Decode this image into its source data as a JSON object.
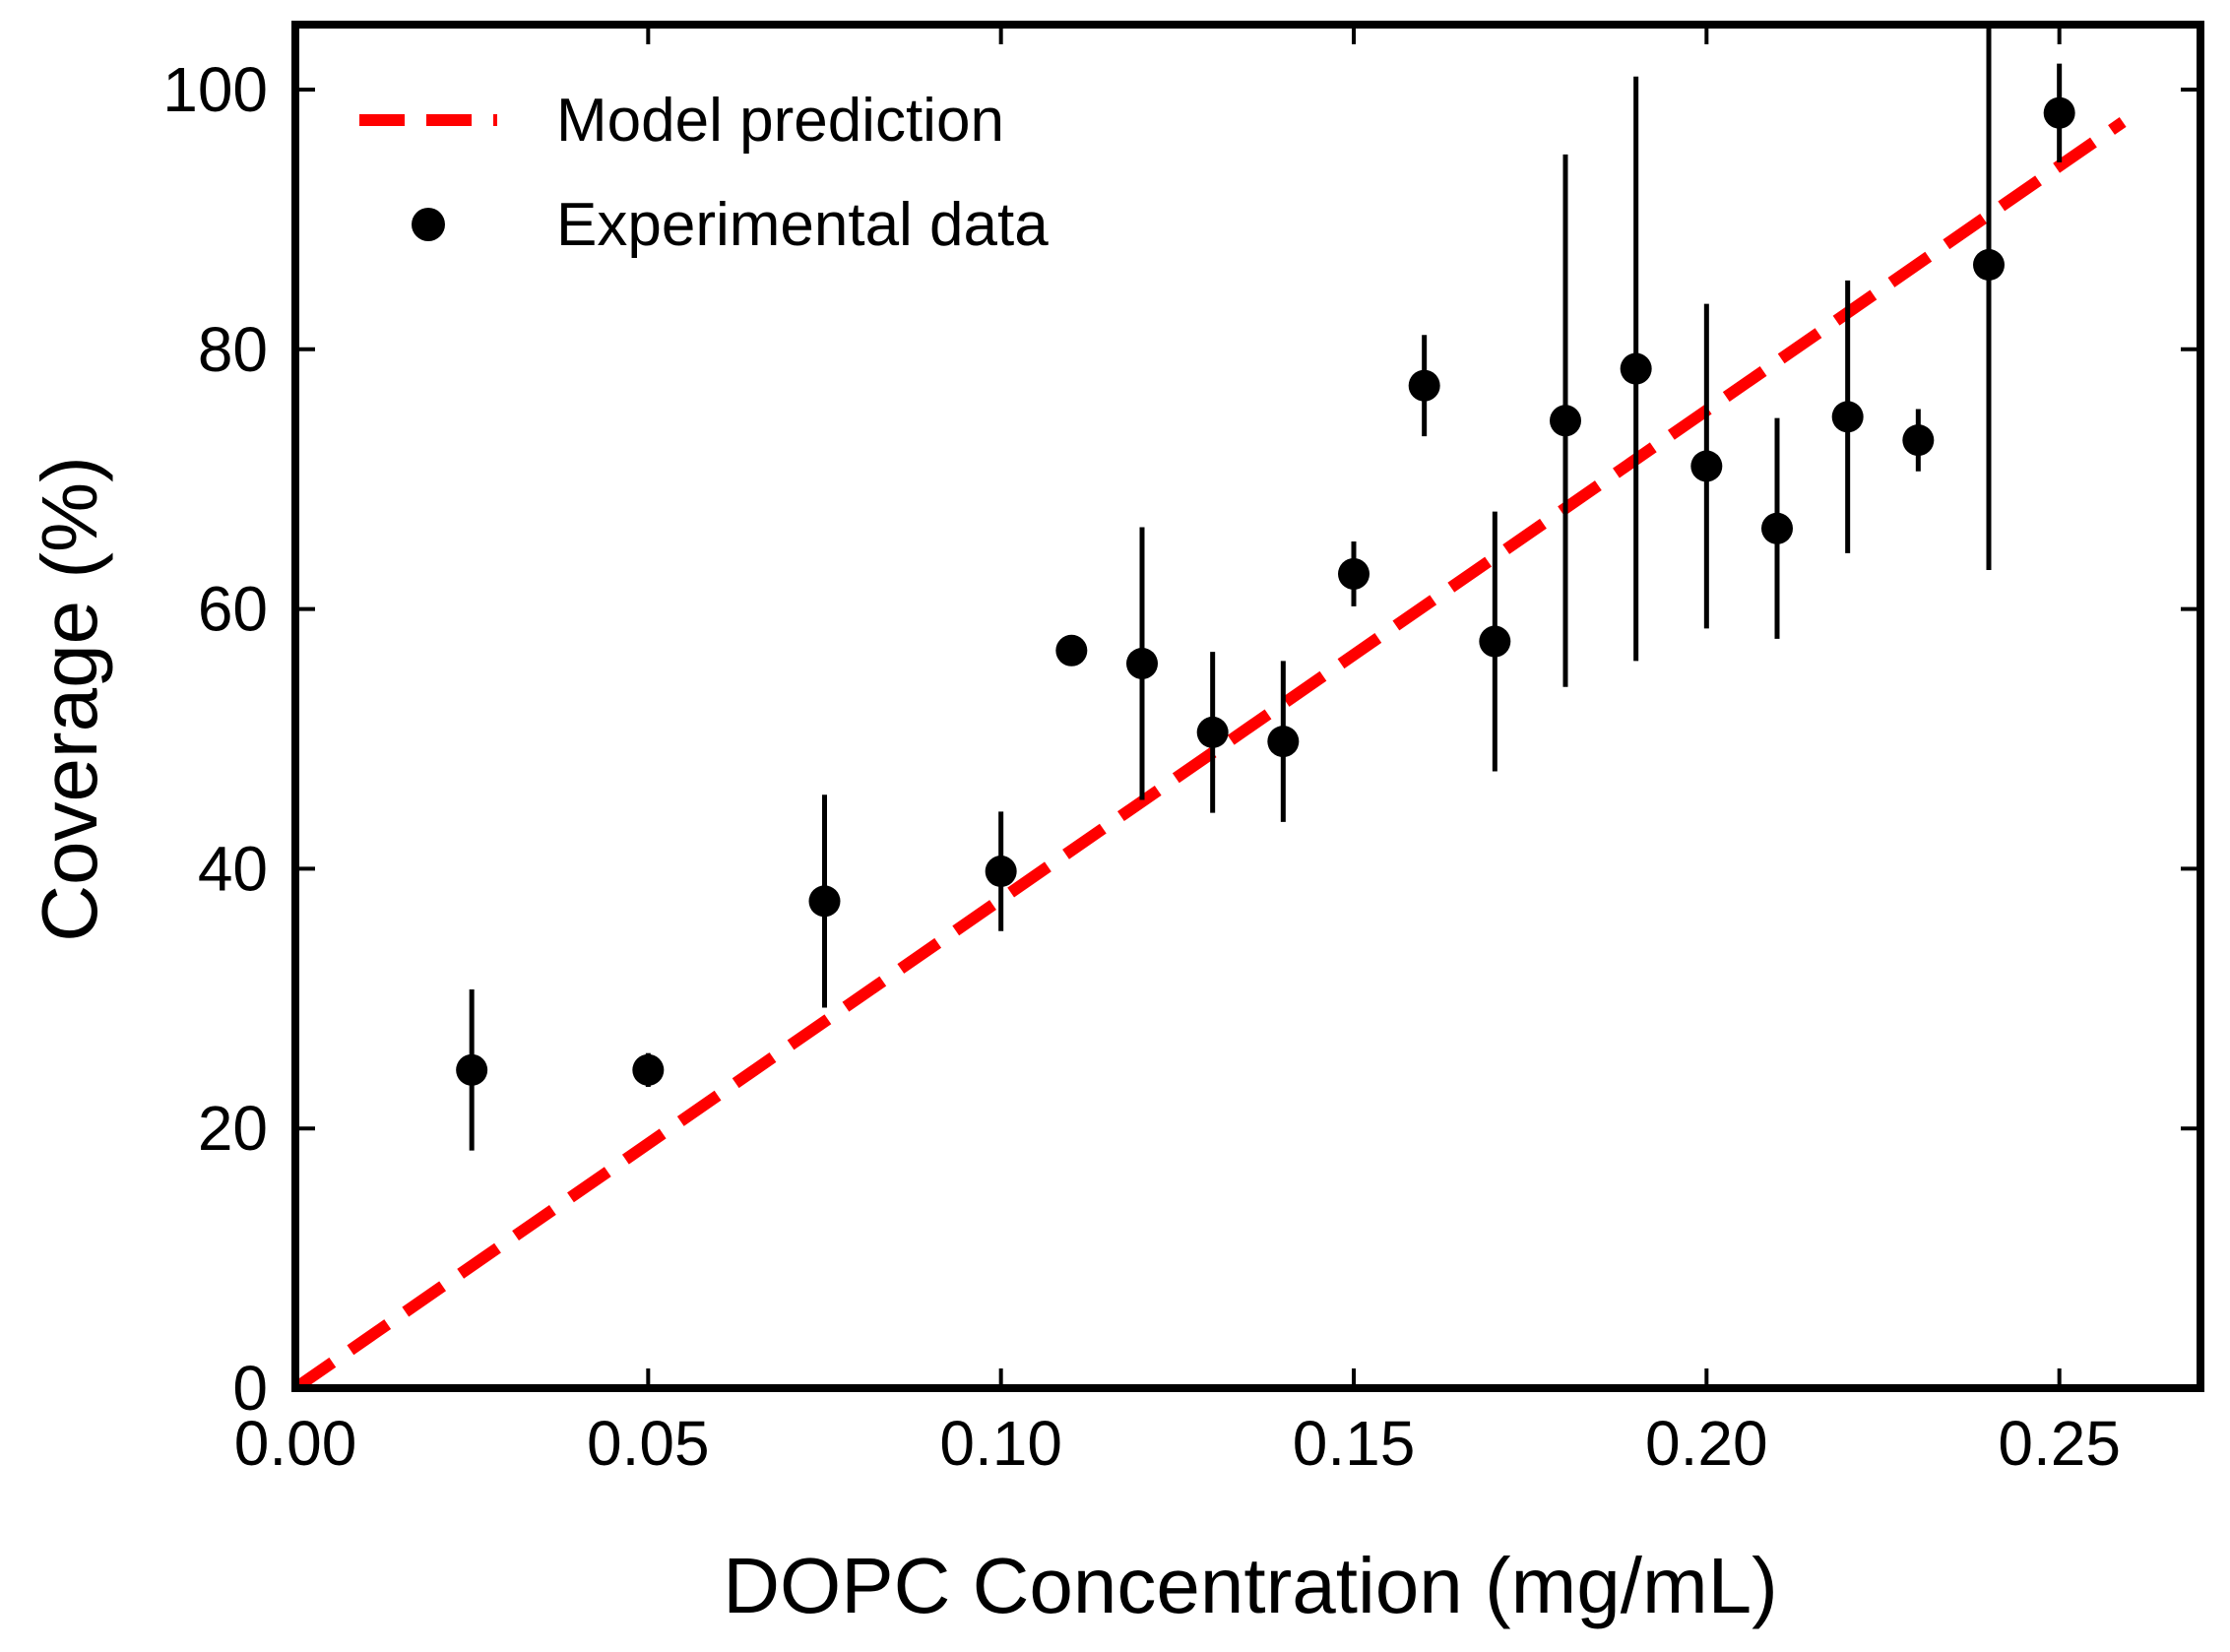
{
  "chart_data": {
    "type": "scatter",
    "title": "",
    "xlabel": "DOPC Concentration (mg/mL)",
    "ylabel": "Coverage (%)",
    "xlim": [
      0,
      0.27
    ],
    "ylim": [
      0,
      105
    ],
    "x_ticks": [
      "0.00",
      "0.05",
      "0.10",
      "0.15",
      "0.20",
      "0.25"
    ],
    "x_tick_values": [
      0,
      0.05,
      0.1,
      0.15,
      0.2,
      0.25
    ],
    "y_ticks": [
      "0",
      "20",
      "40",
      "60",
      "80",
      "100"
    ],
    "y_tick_values": [
      0,
      20,
      40,
      60,
      80,
      100
    ],
    "grid": false,
    "legend_position": "top-left",
    "series": [
      {
        "name": "Model prediction",
        "kind": "line",
        "style": "dashed",
        "color": "#ff0000",
        "x": [
          0,
          0.259
        ],
        "y": [
          0,
          97.5
        ]
      },
      {
        "name": "Experimental data",
        "kind": "scatter-errorbar",
        "color": "#000000",
        "x": [
          0.025,
          0.05,
          0.075,
          0.1,
          0.11,
          0.12,
          0.13,
          0.14,
          0.15,
          0.16,
          0.17,
          0.18,
          0.19,
          0.2,
          0.21,
          0.22,
          0.23,
          0.24,
          0.25
        ],
        "y": [
          24.5,
          24.5,
          37.5,
          39.8,
          56.8,
          55.8,
          50.5,
          49.8,
          62.7,
          77.2,
          57.5,
          74.5,
          78.5,
          71.0,
          66.2,
          74.8,
          73.0,
          86.5,
          98.2
        ],
        "err": [
          6.2,
          1.3,
          8.2,
          4.6,
          0,
          10.5,
          6.2,
          6.2,
          2.5,
          3.9,
          10.0,
          20.5,
          22.5,
          12.5,
          8.5,
          10.5,
          2.4,
          23.5,
          3.8
        ]
      }
    ]
  }
}
